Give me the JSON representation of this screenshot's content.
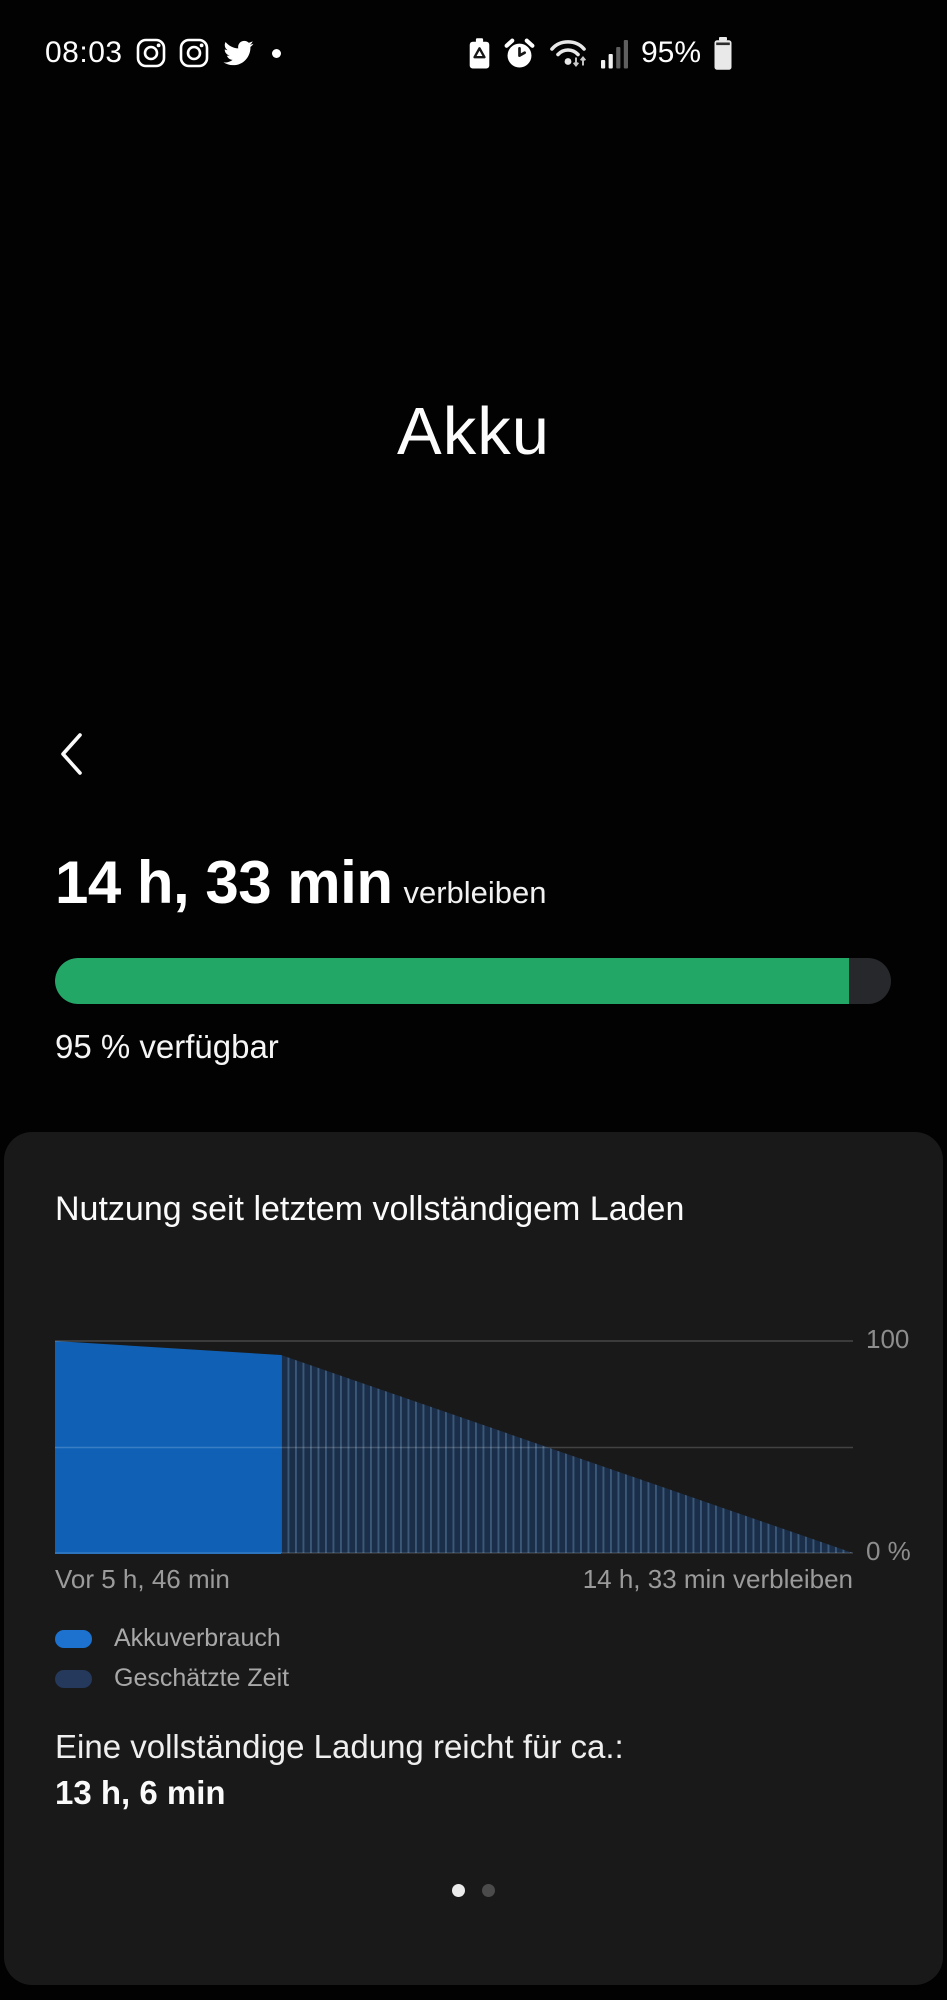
{
  "status_bar": {
    "time": "08:03",
    "battery_percent": "95%",
    "icons_left": [
      "instagram-icon",
      "instagram-icon",
      "twitter-icon",
      "notification-dot"
    ],
    "icons_right": [
      "battery-saver-icon",
      "alarm-icon",
      "wifi-icon",
      "signal-icon",
      "battery-icon"
    ]
  },
  "page": {
    "title": "Akku"
  },
  "summary": {
    "remaining_time": "14 h, 33 min",
    "remaining_suffix": "verbleiben",
    "available_label": "95 % verfügbar",
    "progress_percent": 95,
    "progress_color": "#23a766",
    "track_color": "#26282b"
  },
  "usage_card": {
    "title": "Nutzung seit letztem vollständigem Laden",
    "axis": {
      "y_top": "100",
      "y_bottom": "0 %",
      "x_left": "Vor 5 h, 46 min",
      "x_right": "14 h, 33 min verbleiben"
    },
    "legend": [
      {
        "label": "Akkuverbrauch",
        "color": "#1d72cf"
      },
      {
        "label": "Geschätzte Zeit",
        "color": "#24395c"
      }
    ],
    "full_charge_label": "Eine vollständige Ladung reicht für ca.:",
    "full_charge_value": "13 h, 6 min",
    "chart_data": {
      "type": "area",
      "title": "Nutzung seit letztem vollständigem Laden",
      "ylim": [
        0,
        100
      ],
      "y_tick_labels": [
        "100",
        "0 %"
      ],
      "x_labels": [
        "Vor 5 h, 46 min",
        "14 h, 33 min verbleiben"
      ],
      "legend_position": "bottom-left",
      "grid": "horizontal",
      "series": [
        {
          "name": "Akkuverbrauch",
          "style": "solid",
          "color": "#1061b5",
          "points_hours_vs_percent": [
            {
              "x": 0,
              "y": 100
            },
            {
              "x": 5.77,
              "y": 95
            }
          ],
          "note": "measured usage from 'Vor 5 h, 46 min' until now"
        },
        {
          "name": "Geschätzte Zeit",
          "style": "hatched",
          "color": "#1a2e49",
          "points_hours_vs_percent": [
            {
              "x": 5.77,
              "y": 95
            },
            {
              "x": 20.32,
              "y": 0
            }
          ],
          "note": "estimated drain over remaining 14 h, 33 min"
        }
      ]
    }
  },
  "pager": {
    "count": 2,
    "active_index": 0
  }
}
